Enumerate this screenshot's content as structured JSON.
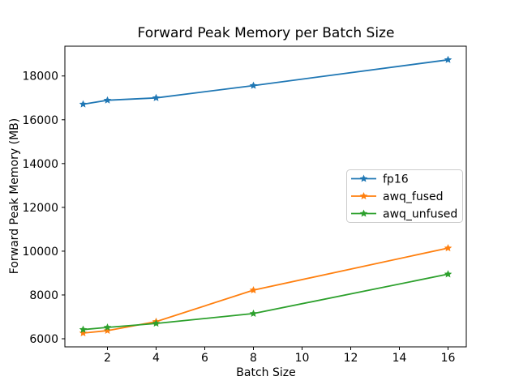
{
  "figure": {
    "background": "#ffffff"
  },
  "chart_data": {
    "type": "line",
    "title": "Forward Peak Memory per Batch Size",
    "xlabel": "Batch Size",
    "ylabel": "Forward Peak Memory (MB)",
    "x": [
      1,
      2,
      4,
      8,
      16
    ],
    "series": [
      {
        "name": "fp16",
        "color": "#1f77b4",
        "values": [
          16710,
          16890,
          17000,
          17560,
          18740
        ]
      },
      {
        "name": "awq_fused",
        "color": "#ff7f0e",
        "values": [
          6260,
          6370,
          6780,
          8220,
          10140
        ]
      },
      {
        "name": "awq_unfused",
        "color": "#2ca02c",
        "values": [
          6420,
          6520,
          6700,
          7150,
          8950
        ]
      }
    ],
    "marker": "star",
    "xticks": [
      2,
      4,
      6,
      8,
      10,
      12,
      14,
      16
    ],
    "yticks": [
      6000,
      8000,
      10000,
      12000,
      14000,
      16000,
      18000
    ],
    "xlim": [
      0.25,
      16.75
    ],
    "ylim": [
      5630,
      19360
    ],
    "grid": false,
    "legend_position": "center right",
    "style": {
      "axis_color": "#000000",
      "legend_edge_color": "#cccccc",
      "legend_fill": "#ffffff"
    }
  }
}
